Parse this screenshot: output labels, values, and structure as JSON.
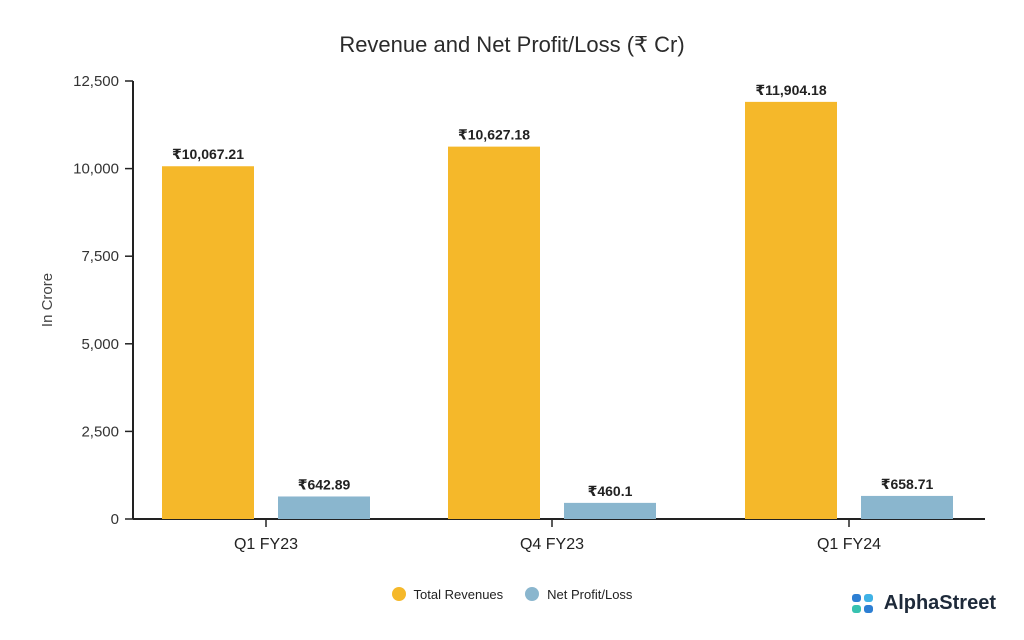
{
  "chart_data": {
    "type": "bar",
    "title": "Revenue and Net Profit/Loss (₹ Cr)",
    "ylabel": "In Crore",
    "xlabel": "",
    "ylim": [
      0,
      12500
    ],
    "yticks": [
      0,
      2500,
      5000,
      7500,
      10000,
      12500
    ],
    "ytick_labels": [
      "0",
      "2,500",
      "5,000",
      "7,500",
      "10,000",
      "12,500"
    ],
    "categories": [
      "Q1 FY23",
      "Q4 FY23",
      "Q1 FY24"
    ],
    "series": [
      {
        "name": "Total Revenues",
        "color": "#F5B82A",
        "values": [
          10067.21,
          10627.18,
          11904.18
        ],
        "labels": [
          "₹10,067.21",
          "₹10,627.18",
          "₹11,904.18"
        ]
      },
      {
        "name": "Net Profit/Loss",
        "color": "#8AB6CE",
        "values": [
          642.89,
          460.1,
          658.71
        ],
        "labels": [
          "₹642.89",
          "₹460.1",
          "₹658.71"
        ]
      }
    ],
    "grid": false,
    "legend_position": "bottom-center"
  },
  "brand": {
    "name": "AlphaStreet",
    "logo_colors": [
      "#2D7FD3",
      "#3FB2E6",
      "#37C2B0",
      "#2D7FD3"
    ]
  }
}
